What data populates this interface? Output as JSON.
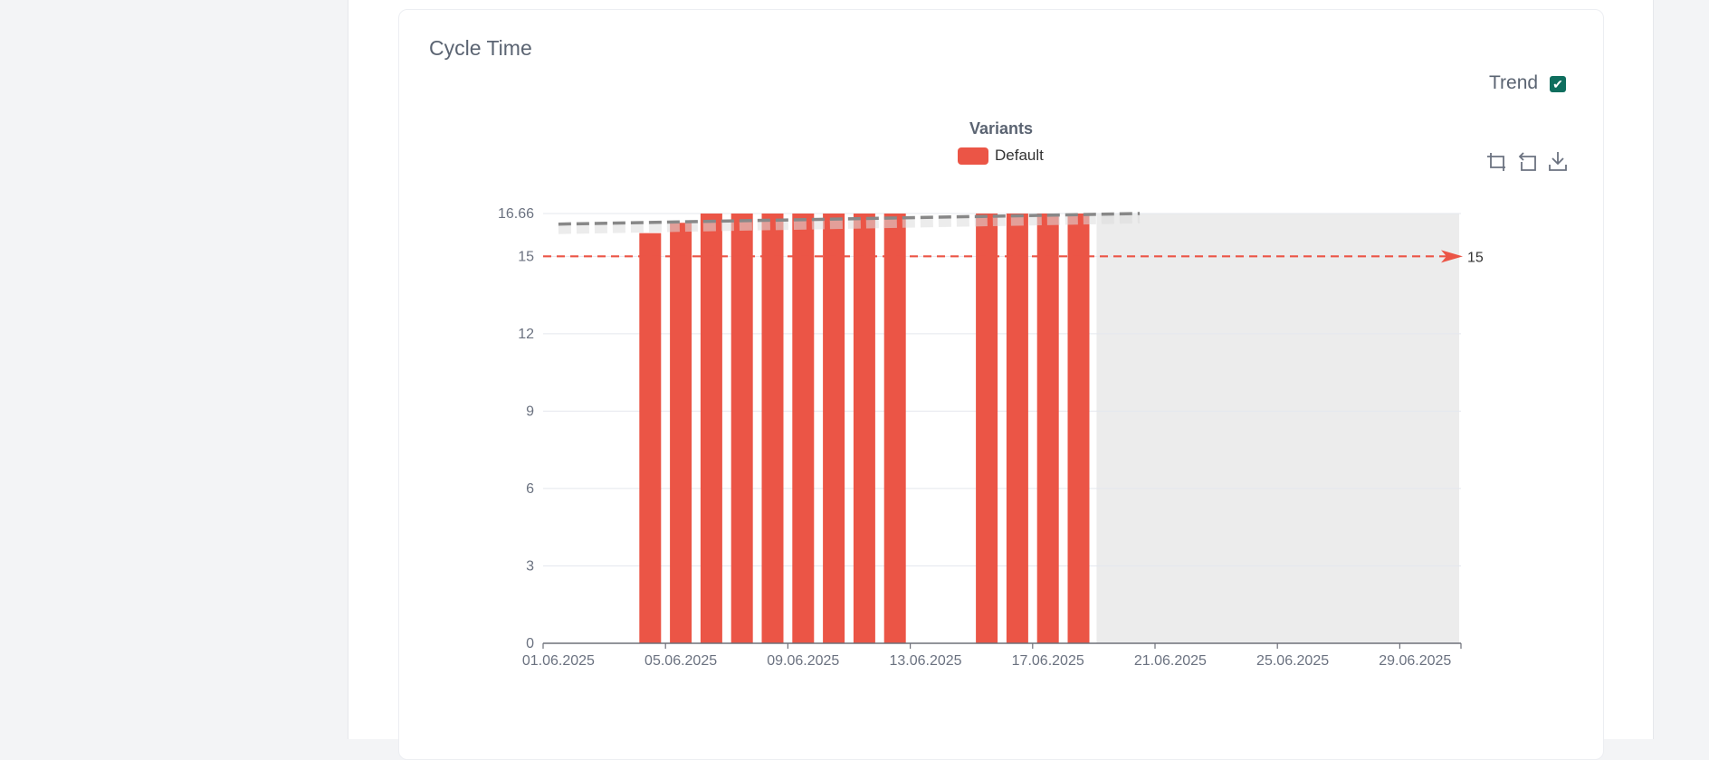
{
  "card": {
    "title": "Cycle Time",
    "trend_label": "Trend",
    "trend_checked": true
  },
  "toolbox": {
    "icons": [
      "zoom-icon",
      "zoom-reset-icon",
      "download-icon"
    ]
  },
  "colors": {
    "bar": "#eb5546",
    "trend": "#888888",
    "target": "#eb5546",
    "future_area": "#ececec",
    "accent": "#0f6e5e"
  },
  "chart_data": {
    "type": "bar",
    "legend_title": "Variants",
    "legend_placement": "top-center",
    "x_start": "01.06.2025",
    "x_end": "30.06.2025",
    "x_tick_labels": [
      "01.06.2025",
      "05.06.2025",
      "09.06.2025",
      "13.06.2025",
      "17.06.2025",
      "21.06.2025",
      "25.06.2025",
      "29.06.2025"
    ],
    "ylim": [
      0,
      16.66
    ],
    "y_ticks": [
      "0",
      "3",
      "6",
      "9",
      "12",
      "15",
      "16.66"
    ],
    "grid": true,
    "series": [
      {
        "name": "Default",
        "points": [
          {
            "x": "04.06.2025",
            "y": 15.9
          },
          {
            "x": "05.06.2025",
            "y": 16.3
          },
          {
            "x": "06.06.2025",
            "y": 16.66
          },
          {
            "x": "07.06.2025",
            "y": 16.66
          },
          {
            "x": "08.06.2025",
            "y": 16.66
          },
          {
            "x": "09.06.2025",
            "y": 16.66
          },
          {
            "x": "10.06.2025",
            "y": 16.66
          },
          {
            "x": "11.06.2025",
            "y": 16.66
          },
          {
            "x": "12.06.2025",
            "y": 16.66
          },
          {
            "x": "15.06.2025",
            "y": 16.66
          },
          {
            "x": "16.06.2025",
            "y": 16.66
          },
          {
            "x": "17.06.2025",
            "y": 16.66
          },
          {
            "x": "18.06.2025",
            "y": 16.66
          }
        ]
      }
    ],
    "target_line": {
      "value": 15,
      "label": "15"
    },
    "trend_line": {
      "start": {
        "x": "01.06.2025",
        "y": 16.25
      },
      "end": {
        "x": "20.06.2025",
        "y": 16.66
      }
    },
    "future_period": {
      "from": "19.06.2025",
      "to": "29.06.2025"
    }
  }
}
